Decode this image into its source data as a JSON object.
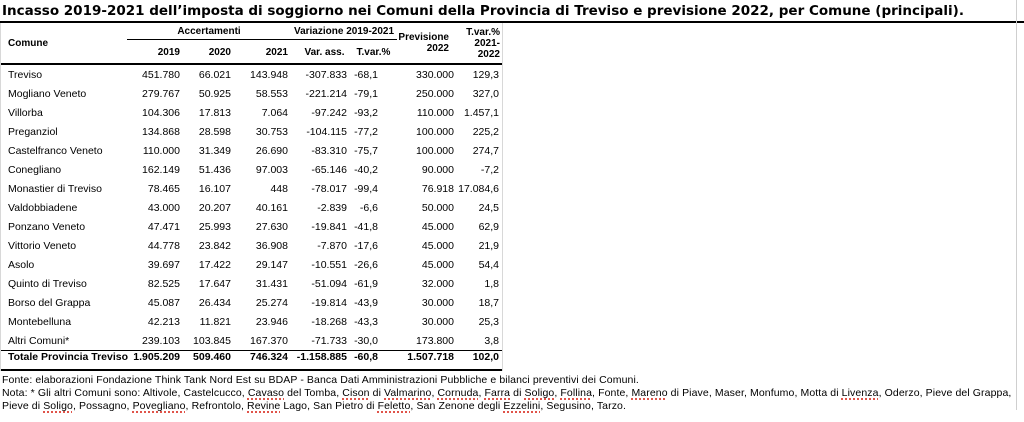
{
  "title": "Incasso 2019-2021 dell’imposta di soggiorno nei Comuni della Provincia di Treviso e previsione 2022, per Comune (principali).",
  "table": {
    "col_comune": "Comune",
    "group_accertamenti": "Accertamenti",
    "group_variazione": "Variazione 2019-2021",
    "years": {
      "y2019": "2019",
      "y2020": "2020",
      "y2021": "2021"
    },
    "col_var_ass": "Var. ass.",
    "col_tvar": "T.var.%",
    "col_previsione_line1": "Previsione",
    "col_previsione_line2": "2022",
    "col_tvar2_line1": "T.var.%",
    "col_tvar2_line2": "2021-2022",
    "rows": [
      [
        "Treviso",
        "451.780",
        "66.021",
        "143.948",
        "-307.833",
        "-68,1",
        "330.000",
        "129,3"
      ],
      [
        "Mogliano Veneto",
        "279.767",
        "50.925",
        "58.553",
        "-221.214",
        "-79,1",
        "250.000",
        "327,0"
      ],
      [
        "Villorba",
        "104.306",
        "17.813",
        "7.064",
        "-97.242",
        "-93,2",
        "110.000",
        "1.457,1"
      ],
      [
        "Preganziol",
        "134.868",
        "28.598",
        "30.753",
        "-104.115",
        "-77,2",
        "100.000",
        "225,2"
      ],
      [
        "Castelfranco Veneto",
        "110.000",
        "31.349",
        "26.690",
        "-83.310",
        "-75,7",
        "100.000",
        "274,7"
      ],
      [
        "Conegliano",
        "162.149",
        "51.436",
        "97.003",
        "-65.146",
        "-40,2",
        "90.000",
        "-7,2"
      ],
      [
        "Monastier di Treviso",
        "78.465",
        "16.107",
        "448",
        "-78.017",
        "-99,4",
        "76.918",
        "17.084,6"
      ],
      [
        "Valdobbiadene",
        "43.000",
        "20.207",
        "40.161",
        "-2.839",
        "-6,6",
        "50.000",
        "24,5"
      ],
      [
        "Ponzano Veneto",
        "47.471",
        "25.993",
        "27.630",
        "-19.841",
        "-41,8",
        "45.000",
        "62,9"
      ],
      [
        "Vittorio Veneto",
        "44.778",
        "23.842",
        "36.908",
        "-7.870",
        "-17,6",
        "45.000",
        "21,9"
      ],
      [
        "Asolo",
        "39.697",
        "17.422",
        "29.147",
        "-10.551",
        "-26,6",
        "45.000",
        "54,4"
      ],
      [
        "Quinto di Treviso",
        "82.525",
        "17.647",
        "31.431",
        "-51.094",
        "-61,9",
        "32.000",
        "1,8"
      ],
      [
        "Borso del Grappa",
        "45.087",
        "26.434",
        "25.274",
        "-19.814",
        "-43,9",
        "30.000",
        "18,7"
      ],
      [
        "Montebelluna",
        "42.213",
        "11.821",
        "23.946",
        "-18.268",
        "-43,3",
        "30.000",
        "25,3"
      ],
      [
        "Altri Comuni*",
        "239.103",
        "103.845",
        "167.370",
        "-71.733",
        "-30,0",
        "173.800",
        "3,8"
      ]
    ],
    "total_row": [
      "Totale Provincia Treviso",
      "1.905.209",
      "509.460",
      "746.324",
      "-1.158.885",
      "-60,8",
      "1.507.718",
      "102,0"
    ]
  },
  "footer": {
    "fonte": "Fonte: elaborazioni Fondazione Think Tank Nord Est su BDAP - Banca Dati Amministrazioni Pubbliche e bilanci preventivi dei Comuni.",
    "nota_segments": [
      {
        "t": "Nota: * Gli altri Comuni sono: Altivole, Castelcucco, "
      },
      {
        "t": "Cavaso",
        "u": true
      },
      {
        "t": " del Tomba, "
      },
      {
        "t": "Cison",
        "u": true
      },
      {
        "t": " di "
      },
      {
        "t": "Valmarino",
        "u": true
      },
      {
        "t": ", "
      },
      {
        "t": "Cornuda",
        "u": true
      },
      {
        "t": ", "
      },
      {
        "t": "Farra",
        "u": true
      },
      {
        "t": " di "
      },
      {
        "t": "Soligo",
        "u": true
      },
      {
        "t": ", "
      },
      {
        "t": "Follina",
        "u": true
      },
      {
        "t": ", Fonte, "
      },
      {
        "t": "Mareno",
        "u": true
      },
      {
        "t": " di Piave, Maser, Monfumo, Motta di "
      },
      {
        "t": "Livenza",
        "u": true
      },
      {
        "t": ", Oderzo, Pieve del Grappa, Pieve di "
      },
      {
        "t": "Soligo",
        "u": true
      },
      {
        "t": ", Possagno, "
      },
      {
        "t": "Povegliano",
        "u": true
      },
      {
        "t": ", Refrontolo, "
      },
      {
        "t": "Revine",
        "u": true
      },
      {
        "t": " Lago, San Pietro di "
      },
      {
        "t": "Feletto",
        "u": true
      },
      {
        "t": ", San Zenone degli "
      },
      {
        "t": "Ezzelini",
        "u": true
      },
      {
        "t": ", Segusino, Tarzo."
      }
    ]
  },
  "colors": {
    "rule": "#000000",
    "table_frame": "#d8d8d8",
    "spellcheck_underline": "#e0544a",
    "page_edge": "#cfcfcf"
  }
}
